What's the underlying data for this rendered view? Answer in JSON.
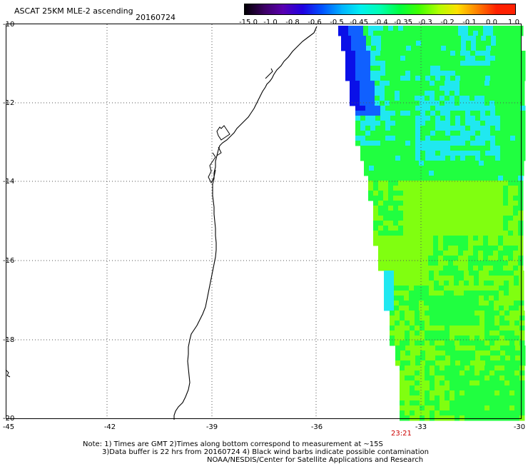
{
  "title": "ASCAT 25KM MLE-2 ascending",
  "date": "20160724",
  "colorbar": {
    "labels": [
      "-15.0",
      "-1.0",
      "-0.8",
      "-0.6",
      "-0.5",
      "-0.45",
      "-0.4",
      "-0.35",
      "-0.3",
      "-0.2",
      "-0.1",
      "0.0",
      "1.0"
    ],
    "colors": [
      "#000000",
      "#3a0060",
      "#5a00b0",
      "#2000e0",
      "#0050ff",
      "#00b0ff",
      "#00f0f0",
      "#00ffb0",
      "#00ff40",
      "#40ff00",
      "#b0ff00",
      "#ffe000",
      "#ff8000",
      "#ff2000"
    ]
  },
  "lat_labels": [
    "-10",
    "-12",
    "-14",
    "-16",
    "-18",
    "-20"
  ],
  "lon_labels": [
    "-45",
    "-42",
    "-39",
    "-36",
    "-33",
    "-30"
  ],
  "pass_time": "23:21",
  "notes": {
    "line1": "Note: 1) Times are GMT 2)Times along bottom correspond to measurement at ~15S",
    "line2": "3)Data buffer is 22 hrs from 20160724 4) Black wind barbs indicate possible contamination",
    "line3": "NOAA/NESDIS/Center for Satellite Applications and Research"
  },
  "colors": {
    "deep_blue": "#0a10e8",
    "blue": "#1060ff",
    "cyan": "#20e8f0",
    "green": "#20ff40",
    "lime": "#80ff10",
    "time_label": "#cc0000"
  }
}
